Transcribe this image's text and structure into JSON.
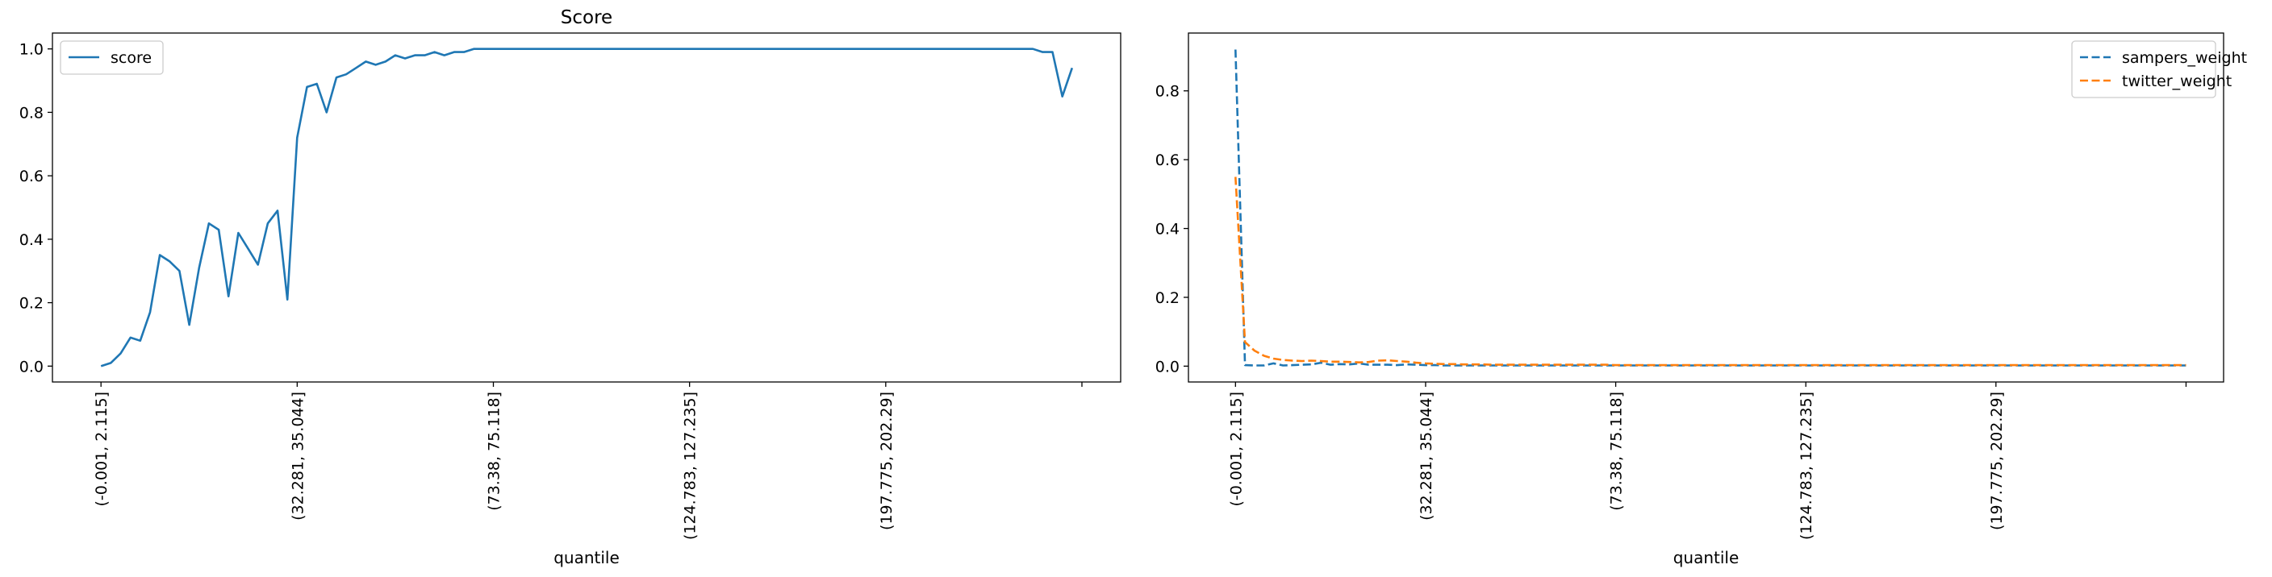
{
  "chart_data": [
    {
      "type": "line",
      "title": "Score",
      "xlabel": "quantile",
      "ylabel": "",
      "ylim": [
        -0.05,
        1.05
      ],
      "xlim": [
        -4.95,
        103.95
      ],
      "xticks": [
        0,
        20,
        40,
        60,
        80,
        100
      ],
      "xtick_labels": [
        "(-0.001, 2.115]",
        "(32.281, 35.044]",
        "(73.38, 75.118]",
        "(124.783, 127.235]",
        "(197.775, 202.29]",
        ""
      ],
      "yticks": [
        0.0,
        0.2,
        0.4,
        0.6,
        0.8,
        1.0
      ],
      "ytick_labels": [
        "0.0",
        "0.2",
        "0.4",
        "0.6",
        "0.8",
        "1.0"
      ],
      "legend": "top-left",
      "series": [
        {
          "name": "score",
          "color": "#1f77b4",
          "style": "solid",
          "x": [
            0,
            1,
            2,
            3,
            4,
            5,
            6,
            7,
            8,
            9,
            10,
            11,
            12,
            13,
            14,
            15,
            16,
            17,
            18,
            19,
            20,
            21,
            22,
            23,
            24,
            25,
            26,
            27,
            28,
            29,
            30,
            31,
            32,
            33,
            34,
            35,
            36,
            37,
            38,
            39,
            40,
            41,
            42,
            43,
            44,
            45,
            46,
            47,
            48,
            49,
            50,
            51,
            52,
            53,
            54,
            55,
            56,
            57,
            58,
            59,
            60,
            61,
            62,
            63,
            64,
            65,
            66,
            67,
            68,
            69,
            70,
            71,
            72,
            73,
            74,
            75,
            76,
            77,
            78,
            79,
            80,
            81,
            82,
            83,
            84,
            85,
            86,
            87,
            88,
            89,
            90,
            91,
            92,
            93,
            94,
            95,
            96,
            97,
            98,
            99
          ],
          "values": [
            0.0,
            0.01,
            0.04,
            0.09,
            0.08,
            0.17,
            0.35,
            0.33,
            0.3,
            0.13,
            0.31,
            0.45,
            0.43,
            0.22,
            0.42,
            0.37,
            0.32,
            0.45,
            0.49,
            0.21,
            0.72,
            0.88,
            0.89,
            0.8,
            0.91,
            0.92,
            0.94,
            0.96,
            0.95,
            0.96,
            0.98,
            0.97,
            0.98,
            0.98,
            0.99,
            0.98,
            0.99,
            0.99,
            1.0,
            1.0,
            1.0,
            1.0,
            1.0,
            1.0,
            1.0,
            1.0,
            1.0,
            1.0,
            1.0,
            1.0,
            1.0,
            1.0,
            1.0,
            1.0,
            1.0,
            1.0,
            1.0,
            1.0,
            1.0,
            1.0,
            1.0,
            1.0,
            1.0,
            1.0,
            1.0,
            1.0,
            1.0,
            1.0,
            1.0,
            1.0,
            1.0,
            1.0,
            1.0,
            1.0,
            1.0,
            1.0,
            1.0,
            1.0,
            1.0,
            1.0,
            1.0,
            1.0,
            1.0,
            1.0,
            1.0,
            1.0,
            1.0,
            1.0,
            1.0,
            1.0,
            1.0,
            1.0,
            1.0,
            1.0,
            1.0,
            1.0,
            0.99,
            0.99,
            0.85,
            0.94
          ]
        }
      ]
    },
    {
      "type": "line",
      "title": "",
      "xlabel": "quantile",
      "ylabel": "",
      "ylim": [
        -0.046,
        0.968
      ],
      "xlim": [
        -4.95,
        103.95
      ],
      "xticks": [
        0,
        20,
        40,
        60,
        80,
        100
      ],
      "xtick_labels": [
        "(-0.001, 2.115]",
        "(32.281, 35.044]",
        "(73.38, 75.118]",
        "(124.783, 127.235]",
        "(197.775, 202.29]",
        ""
      ],
      "yticks": [
        0.0,
        0.2,
        0.4,
        0.6,
        0.8
      ],
      "ytick_labels": [
        "0.0",
        "0.2",
        "0.4",
        "0.6",
        "0.8"
      ],
      "legend": "top-right",
      "series": [
        {
          "name": "sampers_weight",
          "color": "#1f77b4",
          "style": "dashed",
          "x": [
            0,
            1,
            2,
            3,
            4,
            5,
            6,
            7,
            8,
            9,
            10,
            11,
            12,
            13,
            14,
            15,
            16,
            17,
            18,
            19,
            20,
            21,
            22,
            23,
            24,
            25,
            26,
            27,
            28,
            29,
            30,
            31,
            32,
            33,
            34,
            35,
            36,
            37,
            38,
            39,
            40,
            41,
            42,
            43,
            44,
            45,
            46,
            47,
            48,
            49,
            50,
            51,
            52,
            53,
            54,
            55,
            56,
            57,
            58,
            59,
            60,
            61,
            62,
            63,
            64,
            65,
            66,
            67,
            68,
            69,
            70,
            71,
            72,
            73,
            74,
            75,
            76,
            77,
            78,
            79,
            80,
            81,
            82,
            83,
            84,
            85,
            86,
            87,
            88,
            89,
            90,
            91,
            92,
            93,
            94,
            95,
            96,
            97,
            98,
            99,
            100
          ],
          "values": [
            0.92,
            0.003,
            0.002,
            0.002,
            0.008,
            0.002,
            0.003,
            0.004,
            0.005,
            0.01,
            0.004,
            0.006,
            0.005,
            0.008,
            0.004,
            0.004,
            0.004,
            0.003,
            0.005,
            0.004,
            0.003,
            0.003,
            0.002,
            0.002,
            0.002,
            0.002,
            0.002,
            0.002,
            0.002,
            0.002,
            0.002,
            0.002,
            0.002,
            0.002,
            0.002,
            0.002,
            0.002,
            0.002,
            0.002,
            0.002,
            0.002,
            0.002,
            0.002,
            0.002,
            0.002,
            0.002,
            0.002,
            0.002,
            0.002,
            0.002,
            0.002,
            0.002,
            0.002,
            0.002,
            0.002,
            0.002,
            0.002,
            0.002,
            0.002,
            0.002,
            0.002,
            0.002,
            0.002,
            0.002,
            0.002,
            0.002,
            0.002,
            0.002,
            0.002,
            0.002,
            0.002,
            0.002,
            0.002,
            0.002,
            0.002,
            0.002,
            0.002,
            0.002,
            0.002,
            0.002,
            0.002,
            0.002,
            0.002,
            0.002,
            0.002,
            0.002,
            0.002,
            0.002,
            0.002,
            0.002,
            0.002,
            0.002,
            0.002,
            0.002,
            0.002,
            0.002,
            0.002,
            0.002,
            0.002,
            0.002,
            0.002
          ]
        },
        {
          "name": "twitter_weight",
          "color": "#ff7f0e",
          "style": "dashed",
          "x": [
            0,
            1,
            2,
            3,
            4,
            5,
            6,
            7,
            8,
            9,
            10,
            11,
            12,
            13,
            14,
            15,
            16,
            17,
            18,
            19,
            20,
            21,
            22,
            23,
            24,
            25,
            26,
            27,
            28,
            29,
            30,
            31,
            32,
            33,
            34,
            35,
            36,
            37,
            38,
            39,
            40,
            41,
            42,
            43,
            44,
            45,
            46,
            47,
            48,
            49,
            50,
            51,
            52,
            53,
            54,
            55,
            56,
            57,
            58,
            59,
            60,
            61,
            62,
            63,
            64,
            65,
            66,
            67,
            68,
            69,
            70,
            71,
            72,
            73,
            74,
            75,
            76,
            77,
            78,
            79,
            80,
            81,
            82,
            83,
            84,
            85,
            86,
            87,
            88,
            89,
            90,
            91,
            92,
            93,
            94,
            95,
            96,
            97,
            98,
            99,
            100
          ],
          "values": [
            0.55,
            0.07,
            0.045,
            0.03,
            0.022,
            0.018,
            0.016,
            0.015,
            0.016,
            0.015,
            0.013,
            0.013,
            0.012,
            0.011,
            0.012,
            0.016,
            0.017,
            0.015,
            0.013,
            0.01,
            0.008,
            0.007,
            0.006,
            0.006,
            0.005,
            0.005,
            0.005,
            0.004,
            0.004,
            0.004,
            0.004,
            0.004,
            0.004,
            0.004,
            0.004,
            0.004,
            0.004,
            0.004,
            0.004,
            0.004,
            0.003,
            0.003,
            0.003,
            0.003,
            0.003,
            0.003,
            0.003,
            0.003,
            0.003,
            0.003,
            0.003,
            0.003,
            0.003,
            0.003,
            0.003,
            0.003,
            0.003,
            0.003,
            0.003,
            0.003,
            0.003,
            0.003,
            0.003,
            0.003,
            0.003,
            0.003,
            0.003,
            0.003,
            0.003,
            0.003,
            0.003,
            0.003,
            0.003,
            0.003,
            0.003,
            0.003,
            0.003,
            0.003,
            0.003,
            0.003,
            0.003,
            0.003,
            0.003,
            0.003,
            0.003,
            0.003,
            0.003,
            0.003,
            0.003,
            0.003,
            0.003,
            0.003,
            0.003,
            0.003,
            0.003,
            0.003,
            0.003,
            0.003,
            0.003,
            0.003,
            0.003
          ]
        }
      ]
    }
  ]
}
